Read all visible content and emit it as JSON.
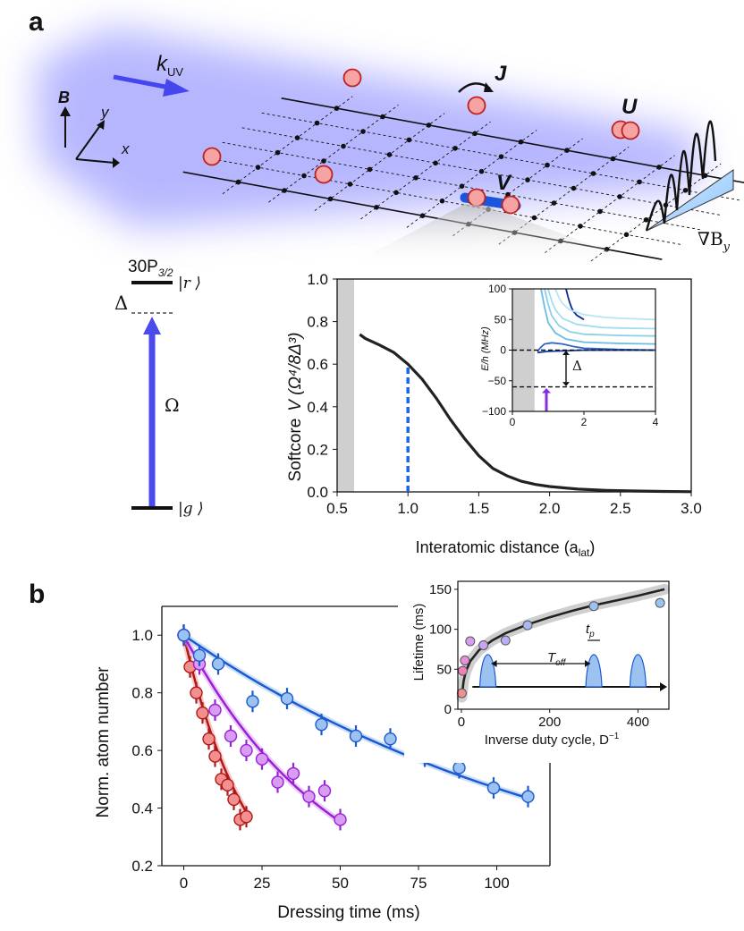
{
  "panel_labels": {
    "a": "a",
    "b": "b"
  },
  "schematic": {
    "k_label": "k",
    "k_sub": "UV",
    "b_label": "B",
    "x_label": "x",
    "y_label": "y",
    "J_label": "J",
    "U_label": "U",
    "V_label": "V",
    "gradient_label": "∇B",
    "gradient_sub": "y"
  },
  "level_diagram": {
    "rydberg_state": "30P",
    "rydberg_sub": "3/2",
    "rydberg_ket": "|r ⟩",
    "ground_ket": "|g ⟩",
    "detuning": "Δ",
    "rabi": "Ω"
  },
  "colors": {
    "red_data": "#f28f8f",
    "red_line": "#b01818",
    "purple_data": "#d89cf2",
    "purple_line": "#9a20d8",
    "blue_data": "#9cc2f2",
    "blue_line": "#1c5ad2",
    "softcore_line": "#222222",
    "cutoff_dash": "#1a66e8",
    "shade": "#cfcfcf",
    "beam": "#a8a8ff"
  },
  "chart_data": [
    {
      "id": "softcore",
      "type": "line",
      "title": "",
      "ylabel_prefix": "Softcore",
      "ylabel_math": "V (Ω⁴/8Δ³)",
      "xlabel": "Interatomic distance (a",
      "xlabel_sub": "lat",
      "xlabel_suffix": ")",
      "xlim": [
        0.5,
        3.0
      ],
      "ylim": [
        0.0,
        1.0
      ],
      "xticks": [
        "0.5",
        "1.0",
        "1.5",
        "2.0",
        "2.5",
        "3.0"
      ],
      "yticks": [
        "0.0",
        "0.2",
        "0.4",
        "0.6",
        "0.8",
        "1.0"
      ],
      "shaded_region": [
        0.5,
        0.62
      ],
      "cutoff_line": {
        "x": 1.0,
        "y_top": 0.6
      },
      "series": [
        {
          "name": "V(r)",
          "x": [
            0.66,
            0.7,
            0.8,
            0.9,
            1.0,
            1.1,
            1.2,
            1.3,
            1.4,
            1.5,
            1.6,
            1.7,
            1.8,
            1.9,
            2.0,
            2.2,
            2.4,
            2.6,
            2.8,
            3.0
          ],
          "y": [
            0.74,
            0.72,
            0.69,
            0.655,
            0.6,
            0.53,
            0.44,
            0.34,
            0.25,
            0.17,
            0.11,
            0.075,
            0.05,
            0.035,
            0.025,
            0.013,
            0.007,
            0.004,
            0.002,
            0.001
          ]
        }
      ]
    },
    {
      "id": "levels_inset",
      "type": "line",
      "ylabel": "E/h (MHz)",
      "xlim": [
        0,
        4
      ],
      "ylim": [
        -100,
        100
      ],
      "xticks": [
        "0",
        "2",
        "4"
      ],
      "yticks": [
        "100",
        "50",
        "0",
        "−50",
        "−100"
      ],
      "shaded_region": [
        0,
        0.62
      ],
      "detuning_label": "Δ",
      "ref_levels": [
        0,
        -60
      ],
      "arrow_x": 0.95,
      "series": [
        {
          "name": "level 1",
          "color": "#0a2a9a",
          "x": [
            1.5,
            1.55,
            1.6,
            1.65,
            1.7,
            1.8,
            2.0
          ],
          "y": [
            100,
            88,
            78,
            70,
            64,
            57,
            50
          ]
        },
        {
          "name": "level 2",
          "color": "#b8e4f2",
          "x": [
            1.2,
            1.3,
            1.4,
            1.6,
            2.0,
            2.5,
            3.0,
            4.0
          ],
          "y": [
            100,
            86,
            76,
            66,
            58,
            54,
            52,
            50
          ]
        },
        {
          "name": "level 3",
          "color": "#a4dcf0",
          "x": [
            1.0,
            1.1,
            1.2,
            1.4,
            1.8,
            2.5,
            3.0,
            4.0
          ],
          "y": [
            100,
            80,
            66,
            52,
            42,
            37,
            36,
            35
          ]
        },
        {
          "name": "level 4",
          "color": "#8ccfeb",
          "x": [
            0.9,
            1.0,
            1.1,
            1.3,
            1.6,
            2.0,
            3.0,
            4.0
          ],
          "y": [
            100,
            75,
            56,
            40,
            30,
            26,
            24,
            23
          ]
        },
        {
          "name": "level 5",
          "color": "#6bbce3",
          "x": [
            0.8,
            0.9,
            1.0,
            1.2,
            1.5,
            2.0,
            3.0,
            4.0
          ],
          "y": [
            100,
            70,
            45,
            28,
            18,
            13,
            11,
            10
          ]
        },
        {
          "name": "level 6",
          "color": "#2c66cc",
          "x": [
            0.7,
            0.8,
            0.9,
            1.1,
            1.4,
            1.7,
            2.0,
            3.0,
            4.0
          ],
          "y": [
            -2,
            5,
            10,
            12,
            10,
            6,
            3,
            1,
            0
          ]
        },
        {
          "name": "level 7",
          "color": "#0d3aa8",
          "x": [
            0.7,
            1.0,
            1.5,
            2.0,
            3.0,
            4.0
          ],
          "y": [
            -4,
            -2,
            -1,
            0,
            0,
            0
          ]
        }
      ]
    },
    {
      "id": "decay",
      "type": "scatter",
      "xlabel": "Dressing time (ms)",
      "ylabel": "Norm. atom number",
      "xlim": [
        -7,
        117
      ],
      "ylim": [
        0.2,
        1.1
      ],
      "xticks": [
        "0",
        "25",
        "50",
        "75",
        "100"
      ],
      "yticks": [
        "0.2",
        "0.4",
        "0.6",
        "0.8",
        "1.0"
      ],
      "series": [
        {
          "name": "red",
          "x": [
            0,
            2,
            4,
            6,
            8,
            10,
            12,
            14,
            16,
            18,
            20
          ],
          "y": [
            1.0,
            0.89,
            0.8,
            0.73,
            0.64,
            0.58,
            0.5,
            0.48,
            0.43,
            0.36,
            0.37
          ],
          "tau": 21
        },
        {
          "name": "purple",
          "x": [
            0,
            5,
            10,
            15,
            20,
            25,
            30,
            35,
            40,
            45,
            50
          ],
          "y": [
            1.0,
            0.9,
            0.74,
            0.65,
            0.6,
            0.57,
            0.49,
            0.52,
            0.44,
            0.46,
            0.36
          ],
          "tau": 48
        },
        {
          "name": "blue",
          "x": [
            0,
            5,
            11,
            22,
            33,
            44,
            55,
            66,
            77,
            88,
            99,
            110
          ],
          "y": [
            1.0,
            0.93,
            0.9,
            0.77,
            0.78,
            0.69,
            0.65,
            0.64,
            0.58,
            0.54,
            0.47,
            0.44
          ],
          "tau": 132
        }
      ]
    },
    {
      "id": "lifetime",
      "type": "scatter",
      "xlabel": "Inverse duty cycle, D",
      "xlabel_sup": "−1",
      "ylabel": "Lifetime (ms)",
      "xlim": [
        -8,
        470
      ],
      "ylim": [
        0,
        160
      ],
      "xticks": [
        "0",
        "200",
        "400"
      ],
      "yticks": [
        "0",
        "50",
        "100",
        "150"
      ],
      "annotation_tp": "t",
      "annotation_tp_sub": "p",
      "annotation_toff": "T",
      "annotation_toff_sub": "off",
      "points": [
        {
          "x": 1,
          "y": 20,
          "color": "#f28f8f"
        },
        {
          "x": 3,
          "y": 48,
          "color": "#f080b8"
        },
        {
          "x": 8,
          "y": 61,
          "color": "#e890d8"
        },
        {
          "x": 20,
          "y": 85,
          "color": "#d89cf2"
        },
        {
          "x": 50,
          "y": 80,
          "color": "#c8a4f2"
        },
        {
          "x": 100,
          "y": 86,
          "color": "#b8aef2"
        },
        {
          "x": 150,
          "y": 105,
          "color": "#a8b8f2"
        },
        {
          "x": 300,
          "y": 129,
          "color": "#9cc2f2"
        },
        {
          "x": 450,
          "y": 133,
          "color": "#9cc2f2"
        }
      ],
      "fit": {
        "x": [
          1,
          5,
          10,
          20,
          40,
          70,
          100,
          150,
          200,
          250,
          300,
          350,
          400,
          460
        ],
        "y": [
          15,
          35,
          47,
          60,
          74,
          86,
          95,
          106,
          115,
          123,
          130,
          136,
          142,
          150
        ]
      }
    }
  ]
}
